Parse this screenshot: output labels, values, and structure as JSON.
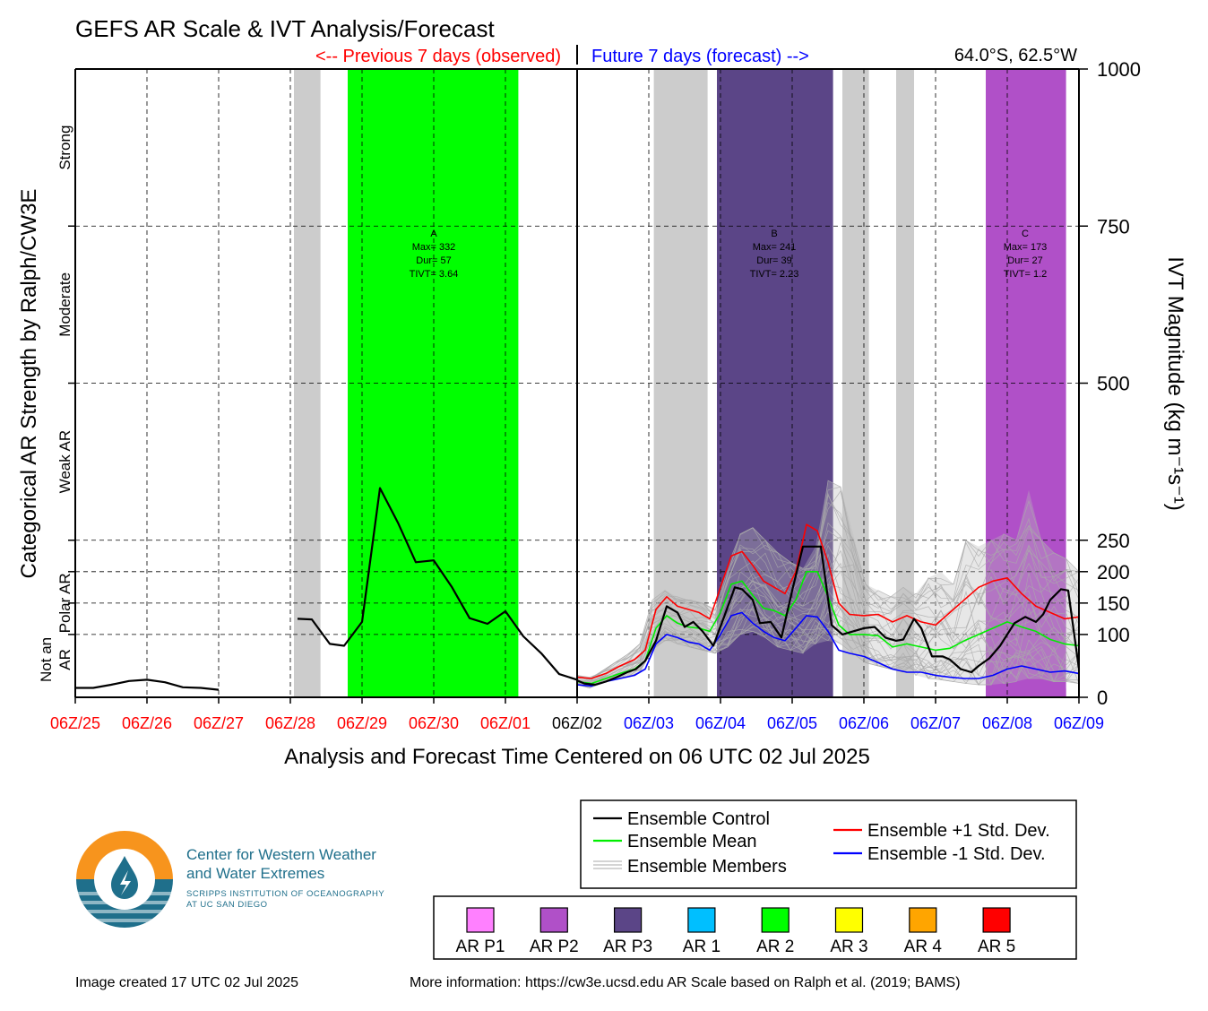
{
  "title": "GEFS AR Scale & IVT Analysis/Forecast",
  "observed_label": "<-- Previous 7 days (observed)",
  "forecast_label": "Future 7 days (forecast) -->",
  "location": "64.0°S, 62.5°W",
  "colors": {
    "observed": "#ff0000",
    "forecast": "#0000ff",
    "control": "#000000",
    "mean": "#00ee00",
    "plus_std": "#ff0000",
    "minus_std": "#0000ff",
    "member": "#aaaaaa",
    "not_ar_shade": "#cccccc"
  },
  "chart_data": {
    "type": "line",
    "title": "GEFS AR Scale & IVT Analysis/Forecast",
    "xlabel": "Analysis and Forecast Time Centered on 06 UTC 02 Jul 2025",
    "ylabel_right": "IVT Magnitude (kg m⁻¹s⁻¹)",
    "ylabel_left": "Categorical AR Strength by Ralph/CW3E",
    "x_unit": "days relative to 06Z/02",
    "xlim": [
      -7,
      7
    ],
    "ylim": [
      0,
      1000
    ],
    "grid": true,
    "x_ticks": [
      {
        "x": -7,
        "label": "06Z/25",
        "kind": "observed"
      },
      {
        "x": -6,
        "label": "06Z/26",
        "kind": "observed"
      },
      {
        "x": -5,
        "label": "06Z/27",
        "kind": "observed"
      },
      {
        "x": -4,
        "label": "06Z/28",
        "kind": "observed"
      },
      {
        "x": -3,
        "label": "06Z/29",
        "kind": "observed"
      },
      {
        "x": -2,
        "label": "06Z/30",
        "kind": "observed"
      },
      {
        "x": -1,
        "label": "06Z/01",
        "kind": "observed"
      },
      {
        "x": 0,
        "label": "06Z/02",
        "kind": "now"
      },
      {
        "x": 1,
        "label": "06Z/03",
        "kind": "forecast"
      },
      {
        "x": 2,
        "label": "06Z/04",
        "kind": "forecast"
      },
      {
        "x": 3,
        "label": "06Z/05",
        "kind": "forecast"
      },
      {
        "x": 4,
        "label": "06Z/06",
        "kind": "forecast"
      },
      {
        "x": 5,
        "label": "06Z/07",
        "kind": "forecast"
      },
      {
        "x": 6,
        "label": "06Z/08",
        "kind": "forecast"
      },
      {
        "x": 7,
        "label": "06Z/09",
        "kind": "forecast"
      }
    ],
    "y_ticks": [
      0,
      100,
      150,
      200,
      250,
      500,
      750,
      1000
    ],
    "category_lines": [
      100,
      150,
      200,
      250,
      500,
      750
    ],
    "categories": [
      {
        "label": "Not an AR",
        "lines": [
          "Not an",
          "AR"
        ],
        "y": 60
      },
      {
        "label": "Polar AR",
        "lines": [
          "Polar AR"
        ],
        "y": 150
      },
      {
        "label": "Weak AR",
        "lines": [
          "Weak AR"
        ],
        "y": 375
      },
      {
        "label": "Moderate",
        "lines": [
          "Moderate"
        ],
        "y": 625
      },
      {
        "label": "Strong",
        "lines": [
          "Strong"
        ],
        "y": 875
      }
    ],
    "shaded_regions": [
      {
        "x0": -3.95,
        "x1": -3.58,
        "category": "not_ar",
        "color": "#cccccc",
        "y0": 0,
        "y1": 1000
      },
      {
        "x0": -3.2,
        "x1": -0.82,
        "category": "AR 2",
        "color": "#00ff00",
        "y0": 0,
        "y1": 1000
      },
      {
        "x0": 1.07,
        "x1": 1.82,
        "category": "not_ar",
        "color": "#cccccc",
        "y0": 0,
        "y1": 1000
      },
      {
        "x0": 1.95,
        "x1": 3.57,
        "category": "AR P3",
        "color": "#5b4587",
        "y0": 0,
        "y1": 1000
      },
      {
        "x0": 3.7,
        "x1": 4.07,
        "category": "not_ar",
        "color": "#cccccc",
        "y0": 0,
        "y1": 1000
      },
      {
        "x0": 4.45,
        "x1": 4.7,
        "category": "not_ar",
        "color": "#cccccc",
        "y0": 0,
        "y1": 1000
      },
      {
        "x0": 5.7,
        "x1": 6.82,
        "category": "AR P2",
        "color": "#b050c8",
        "y0": 0,
        "y1": 1000
      }
    ],
    "events": [
      {
        "id": "A",
        "max": "Max= 332",
        "dur": "Dur= 57",
        "tivt": "TIVT= 3.64",
        "x": -2.0
      },
      {
        "id": "B",
        "max": "Max= 241",
        "dur": "Dur= 39",
        "tivt": "TIVT= 2.23",
        "x": 2.75
      },
      {
        "id": "C",
        "max": "Max= 173",
        "dur": "Dur= 27",
        "tivt": "TIVT= 1.2",
        "x": 6.25
      }
    ],
    "series": [
      {
        "name": "Ensemble Control",
        "color": "#000000",
        "segments": [
          {
            "x": [
              -7,
              -6.75,
              -6.5,
              -6.25,
              -6,
              -5.75,
              -5.5,
              -5.25,
              -5
            ],
            "y": [
              15,
              15,
              20,
              26,
              28,
              24,
              16,
              15,
              12
            ]
          },
          {
            "x": [
              -3.9,
              -3.7,
              -3.45,
              -3.25,
              -3.0,
              -2.75,
              -2.5,
              -2.25,
              -2.0,
              -1.75,
              -1.5,
              -1.25,
              -1.0,
              -0.75,
              -0.5,
              -0.25,
              0
            ],
            "y": [
              125,
              124,
              85,
              82,
              120,
              333,
              278,
              215,
              218,
              176,
              126,
              117,
              137,
              97,
              70,
              37,
              28
            ]
          },
          {
            "x": [
              0,
              0.1,
              0.25,
              0.4,
              0.55,
              0.7,
              0.82,
              0.95,
              1.1,
              1.25,
              1.4,
              1.5,
              1.62,
              1.75,
              1.9,
              2.05,
              2.2,
              2.3,
              2.45,
              2.55,
              2.7,
              2.85,
              3.0,
              3.15,
              3.25,
              3.4,
              3.55,
              3.7,
              3.85,
              4.0,
              4.15,
              4.3,
              4.45,
              4.55,
              4.7,
              4.8,
              4.95,
              5.1,
              5.2,
              5.35,
              5.5,
              5.6,
              5.75,
              5.9,
              6.0,
              6.1,
              6.25,
              6.4,
              6.5,
              6.6,
              6.75,
              6.85,
              7.0
            ],
            "y": [
              27,
              22,
              20,
              25,
              32,
              40,
              45,
              58,
              90,
              145,
              135,
              112,
              120,
              105,
              82,
              128,
              175,
              172,
              155,
              118,
              120,
              95,
              170,
              240,
              240,
              240,
              115,
              100,
              105,
              110,
              112,
              95,
              90,
              92,
              125,
              110,
              65,
              65,
              60,
              45,
              40,
              50,
              62,
              82,
              100,
              118,
              128,
              120,
              132,
              155,
              172,
              170,
              45
            ]
          }
        ]
      },
      {
        "name": "Ensemble Mean",
        "color": "#00ee00",
        "segments": [
          {
            "x": [
              0,
              0.2,
              0.4,
              0.6,
              0.8,
              0.95,
              1.1,
              1.25,
              1.4,
              1.55,
              1.7,
              1.85,
              2.0,
              2.15,
              2.3,
              2.45,
              2.6,
              2.75,
              2.9,
              3.05,
              3.2,
              3.35,
              3.5,
              3.65,
              3.8,
              4.0,
              4.2,
              4.4,
              4.6,
              4.8,
              5.0,
              5.2,
              5.4,
              5.6,
              5.8,
              6.0,
              6.2,
              6.4,
              6.6,
              6.8,
              7.0
            ],
            "y": [
              25,
              22,
              30,
              38,
              45,
              58,
              110,
              130,
              118,
              112,
              110,
              105,
              135,
              180,
              185,
              162,
              142,
              138,
              130,
              155,
              200,
              200,
              160,
              115,
              100,
              100,
              98,
              80,
              85,
              80,
              75,
              78,
              90,
              100,
              110,
              120,
              112,
              105,
              92,
              85,
              82
            ]
          }
        ]
      },
      {
        "name": "Ensemble +1 Std. Dev.",
        "color": "#ff0000",
        "segments": [
          {
            "x": [
              0,
              0.2,
              0.4,
              0.6,
              0.8,
              0.95,
              1.1,
              1.25,
              1.4,
              1.55,
              1.7,
              1.85,
              2.0,
              2.15,
              2.3,
              2.45,
              2.6,
              2.75,
              2.9,
              3.05,
              3.2,
              3.35,
              3.5,
              3.65,
              3.8,
              4.0,
              4.2,
              4.4,
              4.6,
              4.8,
              5.0,
              5.2,
              5.4,
              5.6,
              5.8,
              6.0,
              6.2,
              6.4,
              6.6,
              6.8,
              7.0
            ],
            "y": [
              32,
              30,
              38,
              50,
              60,
              75,
              140,
              160,
              145,
              140,
              135,
              125,
              175,
              225,
              232,
              210,
              185,
              175,
              165,
              200,
              275,
              265,
              215,
              150,
              132,
              130,
              132,
              120,
              130,
              120,
              115,
              135,
              155,
              175,
              185,
              190,
              165,
              145,
              135,
              125,
              128
            ]
          }
        ]
      },
      {
        "name": "Ensemble -1 Std. Dev.",
        "color": "#0000ff",
        "segments": [
          {
            "x": [
              0,
              0.2,
              0.4,
              0.6,
              0.8,
              0.95,
              1.1,
              1.25,
              1.4,
              1.55,
              1.7,
              1.85,
              2.0,
              2.15,
              2.3,
              2.45,
              2.6,
              2.75,
              2.9,
              3.05,
              3.2,
              3.35,
              3.5,
              3.65,
              3.8,
              4.0,
              4.2,
              4.4,
              4.6,
              4.8,
              5.0,
              5.2,
              5.4,
              5.6,
              5.8,
              6.0,
              6.2,
              6.4,
              6.6,
              6.8,
              7.0
            ],
            "y": [
              20,
              18,
              25,
              30,
              35,
              45,
              85,
              100,
              95,
              88,
              85,
              75,
              100,
              130,
              135,
              118,
              105,
              95,
              90,
              110,
              130,
              128,
              105,
              75,
              70,
              65,
              55,
              45,
              40,
              40,
              35,
              32,
              30,
              30,
              35,
              45,
              50,
              45,
              40,
              42,
              38
            ]
          }
        ]
      }
    ],
    "ensemble_members": {
      "name": "Ensemble Members",
      "color": "#aaaaaa",
      "x_range": [
        0,
        7
      ],
      "low": [
        20,
        15,
        22,
        28,
        32,
        40,
        75,
        90,
        85,
        80,
        75,
        70,
        80,
        100,
        105,
        95,
        80,
        75,
        70,
        85,
        90,
        85,
        70,
        55,
        50,
        45,
        40,
        35,
        30,
        28,
        25,
        22,
        20,
        20,
        22,
        25,
        30,
        30,
        25,
        25,
        22
      ],
      "high": [
        35,
        32,
        42,
        55,
        68,
        85,
        155,
        170,
        160,
        155,
        150,
        140,
        210,
        260,
        270,
        250,
        230,
        215,
        205,
        240,
        345,
        335,
        260,
        180,
        170,
        160,
        175,
        165,
        190,
        200,
        180,
        250,
        240,
        250,
        260,
        250,
        330,
        250,
        230,
        220,
        200
      ]
    },
    "legend": [
      {
        "label": "Ensemble Control",
        "color": "#000000",
        "style": "line"
      },
      {
        "label": "Ensemble Mean",
        "color": "#00ee00",
        "style": "line"
      },
      {
        "label": "Ensemble Members",
        "color": "#aaaaaa",
        "style": "multi"
      },
      {
        "label": "Ensemble +1 Std. Dev.",
        "color": "#ff0000",
        "style": "line"
      },
      {
        "label": "Ensemble -1 Std. Dev.",
        "color": "#0000ff",
        "style": "line"
      }
    ],
    "ar_scale": [
      {
        "label": "AR P1",
        "color": "#ff80ff"
      },
      {
        "label": "AR P2",
        "color": "#b050c8"
      },
      {
        "label": "AR P3",
        "color": "#5b4587"
      },
      {
        "label": "AR 1",
        "color": "#00bfff"
      },
      {
        "label": "AR 2",
        "color": "#00ff00"
      },
      {
        "label": "AR 3",
        "color": "#ffff00"
      },
      {
        "label": "AR 4",
        "color": "#ffa500"
      },
      {
        "label": "AR 5",
        "color": "#ff0000"
      }
    ]
  },
  "logo": {
    "line1": "Center for Western Weather",
    "line2": "and Water Extremes",
    "line3": "SCRIPPS INSTITUTION OF OCEANOGRAPHY",
    "line4": "AT UC SAN DIEGO"
  },
  "footer": {
    "created": "Image created 17 UTC 02 Jul 2025",
    "info": "More information: https://cw3e.ucsd.edu AR Scale based on Ralph et al. (2019; BAMS)"
  }
}
